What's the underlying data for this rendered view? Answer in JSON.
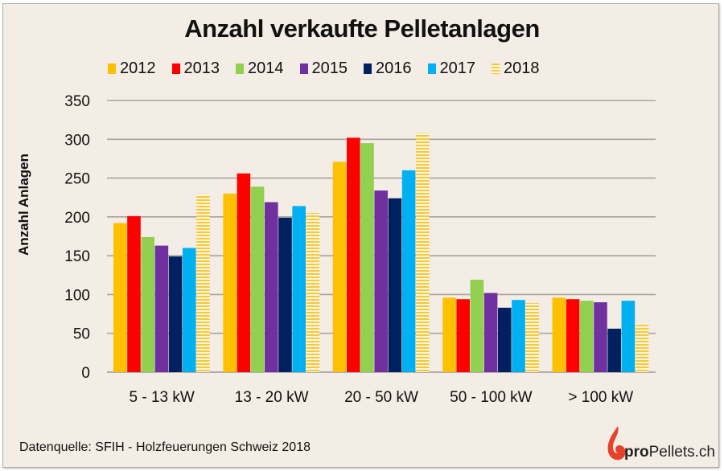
{
  "chart_data": {
    "type": "bar",
    "title": "Anzahl verkaufte Pelletanlagen",
    "xlabel": "",
    "ylabel": "Anzahl Anlagen",
    "ylim": [
      0,
      350
    ],
    "yticks": [
      0,
      50,
      100,
      150,
      200,
      250,
      300,
      350
    ],
    "grid": true,
    "legend_position": "top",
    "categories": [
      "5 - 13 kW",
      "13 - 20 kW",
      "20 - 50 kW",
      "50 - 100 kW",
      "> 100 kW"
    ],
    "series": [
      {
        "name": "2012",
        "color": "#ffc000",
        "pattern": "solid",
        "values": [
          192,
          230,
          271,
          96,
          96
        ]
      },
      {
        "name": "2013",
        "color": "#ff0000",
        "pattern": "solid",
        "values": [
          201,
          256,
          302,
          94,
          94
        ]
      },
      {
        "name": "2014",
        "color": "#92d050",
        "pattern": "solid",
        "values": [
          174,
          239,
          295,
          119,
          92
        ]
      },
      {
        "name": "2015",
        "color": "#7030a0",
        "pattern": "solid",
        "values": [
          163,
          219,
          234,
          102,
          90
        ]
      },
      {
        "name": "2016",
        "color": "#002060",
        "pattern": "solid",
        "values": [
          149,
          199,
          224,
          83,
          56
        ]
      },
      {
        "name": "2017",
        "color": "#00b0f0",
        "pattern": "solid",
        "values": [
          160,
          214,
          260,
          93,
          92
        ]
      },
      {
        "name": "2018",
        "color": "#ffd966",
        "pattern": "horizontal-stripes",
        "values": [
          229,
          205,
          308,
          89,
          63
        ]
      }
    ]
  },
  "footer": {
    "source": "Datenquelle: SFIH - Holzfeuerungen Schweiz 2018",
    "logo_bold": "pro",
    "logo_rest": "Pellets.ch"
  }
}
